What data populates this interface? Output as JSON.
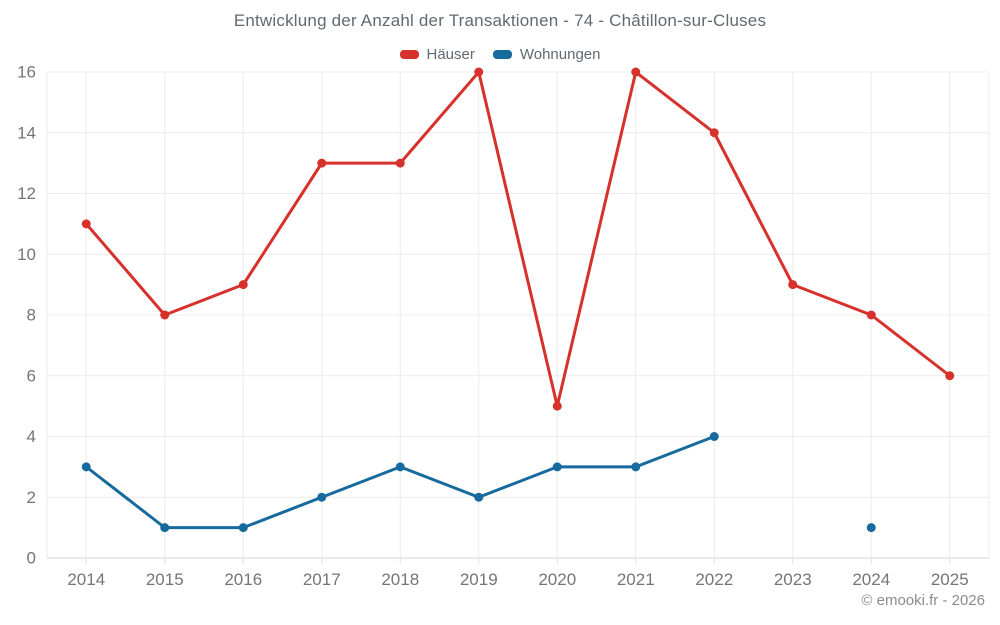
{
  "chart_data": {
    "type": "line",
    "title": "Entwicklung der Anzahl der Transaktionen - 74 - Châtillon-sur-Cluses",
    "categories": [
      "2014",
      "2015",
      "2016",
      "2017",
      "2018",
      "2019",
      "2020",
      "2021",
      "2022",
      "2023",
      "2024",
      "2025"
    ],
    "series": [
      {
        "name": "Häuser",
        "color": "#d7312c",
        "values": [
          11,
          8,
          9,
          13,
          13,
          16,
          5,
          16,
          14,
          9,
          8,
          6
        ]
      },
      {
        "name": "Wohnungen",
        "color": "#176a9d",
        "values": [
          3,
          1,
          1,
          2,
          3,
          2,
          3,
          3,
          4,
          null,
          1,
          null
        ]
      }
    ],
    "ylim": [
      0,
      16
    ],
    "ytick_step": 2,
    "grid": true,
    "legend_position": "top"
  },
  "footer": {
    "copyright": "© emooki.fr - 2026"
  }
}
